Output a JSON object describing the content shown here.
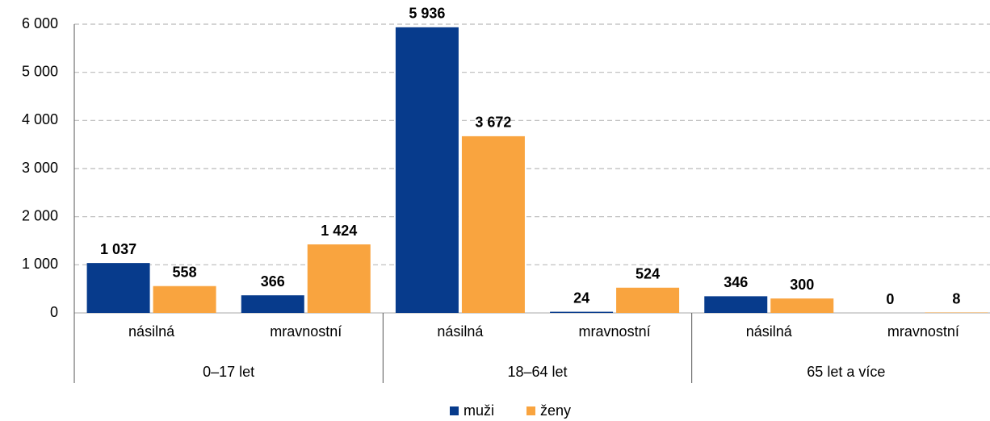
{
  "chart_data": {
    "type": "bar",
    "categories": [
      "násilná",
      "mravnostní",
      "násilná",
      "mravnostní",
      "násilná",
      "mravnostní"
    ],
    "groups": [
      "0–17 let",
      "18–64 let",
      "65 let a více"
    ],
    "series": [
      {
        "name": "muži",
        "color": "#073b8c",
        "values": [
          1037,
          366,
          5936,
          24,
          346,
          0
        ],
        "value_labels": [
          "1 037",
          "366",
          "5 936",
          "24",
          "346",
          "0"
        ]
      },
      {
        "name": "ženy",
        "color": "#f9a43f",
        "values": [
          558,
          1424,
          3672,
          524,
          300,
          8
        ],
        "value_labels": [
          "558",
          "1 424",
          "3 672",
          "524",
          "300",
          "8"
        ]
      }
    ],
    "ylim": [
      0,
      6000
    ],
    "yticks": [
      0,
      {
        "value": 1000,
        "label": "1 000"
      },
      {
        "value": 2000,
        "label": "2 000"
      },
      {
        "value": 3000,
        "label": "3 000"
      },
      {
        "value": 4000,
        "label": "4 000"
      },
      {
        "value": 5000,
        "label": "5 000"
      },
      {
        "value": 6000,
        "label": "6 000"
      }
    ],
    "grid": true,
    "legend": "bottom"
  }
}
